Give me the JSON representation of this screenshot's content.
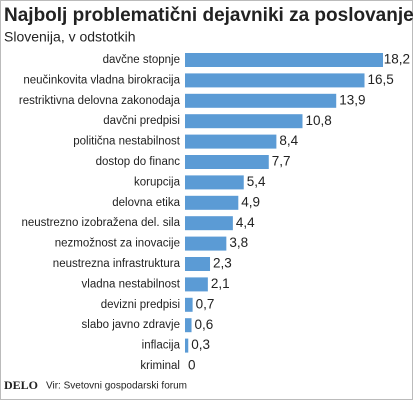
{
  "chart_data": {
    "type": "hbar",
    "title": "Najbolj problematični dejavniki za poslovanje",
    "subtitle": "Slovenija, v odstotkih",
    "categories": [
      "davčne stopnje",
      "neučinkovita vladna birokracija",
      "restriktivna delovna zakonodaja",
      "davčni predpisi",
      "politična nestabilnost",
      "dostop do financ",
      "korupcija",
      "delovna etika",
      "neustrezno izobražena del. sila",
      "nezmožnost za inovacije",
      "neustrezna infrastruktura",
      "vladna nestabilnost",
      "devizni predpisi",
      "slabo javno zdravje",
      "inflacija",
      "kriminal"
    ],
    "values": [
      18.2,
      16.5,
      13.9,
      10.8,
      8.4,
      7.7,
      5.4,
      4.9,
      4.4,
      3.8,
      2.3,
      2.1,
      0.7,
      0.6,
      0.3,
      0
    ],
    "value_labels": [
      "18,2",
      "16,5",
      "13,9",
      "10,8",
      "8,4",
      "7,7",
      "5,4",
      "4,9",
      "4,4",
      "3,8",
      "2,3",
      "2,1",
      "0,7",
      "0,6",
      "0,3",
      "0"
    ],
    "color": "#5b9bd5",
    "logo": "DELO",
    "source": "Vir: Svetovni gospodarski forum"
  }
}
